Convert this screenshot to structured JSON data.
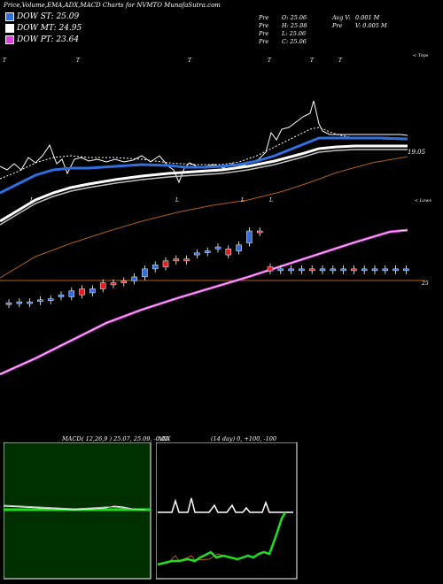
{
  "header": {
    "title": "Price,Volume,EMA,ADX,MACD Charts for NVMTO MunafaSutra.com"
  },
  "legend": [
    {
      "label": "DOW ST: 25.09",
      "color": "#2f6fe0"
    },
    {
      "label": "DOW MT: 24.95",
      "color": "#ffffff"
    },
    {
      "label": "DOW PT: 23.64",
      "color": "#e040e0"
    }
  ],
  "stats": {
    "col1": [
      {
        "k": "Pre",
        "v": "O: 25.06"
      },
      {
        "k": "Pre",
        "v": "H: 25.08"
      },
      {
        "k": "Pre",
        "v": "L: 25.06"
      },
      {
        "k": "Pre",
        "v": "C: 25.06"
      }
    ],
    "col2": [
      {
        "k": "Avg V:",
        "v": "0.001 M"
      },
      {
        "k": "Pre",
        "v": "V: 0.005 M"
      }
    ]
  },
  "main_chart": {
    "label_top_right": "< Tops",
    "label_lows_right": "< Lows",
    "price_label_upper": "19.05",
    "price_label_lower": "25",
    "tops_markers": [
      "T",
      "T",
      "T",
      "T",
      "T",
      "T"
    ],
    "lows_markers": [
      "L",
      "L",
      "L",
      "L"
    ]
  },
  "chart_data": {
    "type": "candlestick",
    "candles": [
      {
        "o": 21.2,
        "c": 21.2,
        "color": "blue"
      },
      {
        "o": 21.2,
        "c": 21.25,
        "color": "blue"
      },
      {
        "o": 21.25,
        "c": 21.25,
        "color": "blue"
      },
      {
        "o": 21.3,
        "c": 21.35,
        "color": "blue"
      },
      {
        "o": 21.4,
        "c": 21.4,
        "color": "blue"
      },
      {
        "o": 21.5,
        "c": 21.6,
        "color": "blue"
      },
      {
        "o": 21.5,
        "c": 21.8,
        "color": "blue"
      },
      {
        "o": 21.6,
        "c": 21.9,
        "color": "red"
      },
      {
        "o": 21.7,
        "c": 21.9,
        "color": "blue"
      },
      {
        "o": 21.9,
        "c": 22.2,
        "color": "red"
      },
      {
        "o": 22.1,
        "c": 22.2,
        "color": "red"
      },
      {
        "o": 22.2,
        "c": 22.3,
        "color": "red"
      },
      {
        "o": 22.3,
        "c": 22.5,
        "color": "blue"
      },
      {
        "o": 22.5,
        "c": 22.9,
        "color": "blue"
      },
      {
        "o": 22.9,
        "c": 23.1,
        "color": "blue"
      },
      {
        "o": 23.0,
        "c": 23.3,
        "color": "red"
      },
      {
        "o": 23.3,
        "c": 23.4,
        "color": "red"
      },
      {
        "o": 23.3,
        "c": 23.4,
        "color": "red"
      },
      {
        "o": 23.6,
        "c": 23.7,
        "color": "blue"
      },
      {
        "o": 23.8,
        "c": 23.8,
        "color": "blue"
      },
      {
        "o": 23.9,
        "c": 24.0,
        "color": "blue"
      },
      {
        "o": 23.6,
        "c": 23.9,
        "color": "red"
      },
      {
        "o": 23.8,
        "c": 24.1,
        "color": "blue"
      },
      {
        "o": 24.2,
        "c": 24.8,
        "color": "blue"
      },
      {
        "o": 24.8,
        "c": 24.8,
        "color": "red"
      },
      {
        "o": 22.8,
        "c": 23.0,
        "color": "red"
      },
      {
        "o": 22.9,
        "c": 22.9,
        "color": "blue"
      },
      {
        "o": 22.9,
        "c": 22.9,
        "color": "blue"
      },
      {
        "o": 22.9,
        "c": 22.9,
        "color": "blue"
      },
      {
        "o": 22.9,
        "c": 22.9,
        "color": "red"
      },
      {
        "o": 22.9,
        "c": 22.9,
        "color": "blue"
      },
      {
        "o": 22.9,
        "c": 22.9,
        "color": "blue"
      },
      {
        "o": 22.9,
        "c": 22.9,
        "color": "blue"
      },
      {
        "o": 22.9,
        "c": 22.9,
        "color": "red"
      },
      {
        "o": 22.9,
        "c": 22.9,
        "color": "blue"
      },
      {
        "o": 22.9,
        "c": 22.9,
        "color": "blue"
      },
      {
        "o": 22.9,
        "c": 22.9,
        "color": "blue"
      },
      {
        "o": 22.9,
        "c": 22.9,
        "color": "blue"
      },
      {
        "o": 22.9,
        "c": 22.9,
        "color": "blue"
      }
    ],
    "ylim": [
      20.5,
      25.2
    ]
  },
  "macd_panel": {
    "label": "MACD:",
    "values": "( 12,26,9 ) 25.07,  25.09,  -0.02"
  },
  "adx_panel": {
    "label": "ADX",
    "values": "(14  day) 0,  +100,  -100"
  },
  "colors": {
    "blue": "#2f6fe0",
    "red": "#e02020",
    "magenta": "#e040e0",
    "brown": "#b0601a",
    "green": "#20e020",
    "macd_bg": "#003000"
  }
}
